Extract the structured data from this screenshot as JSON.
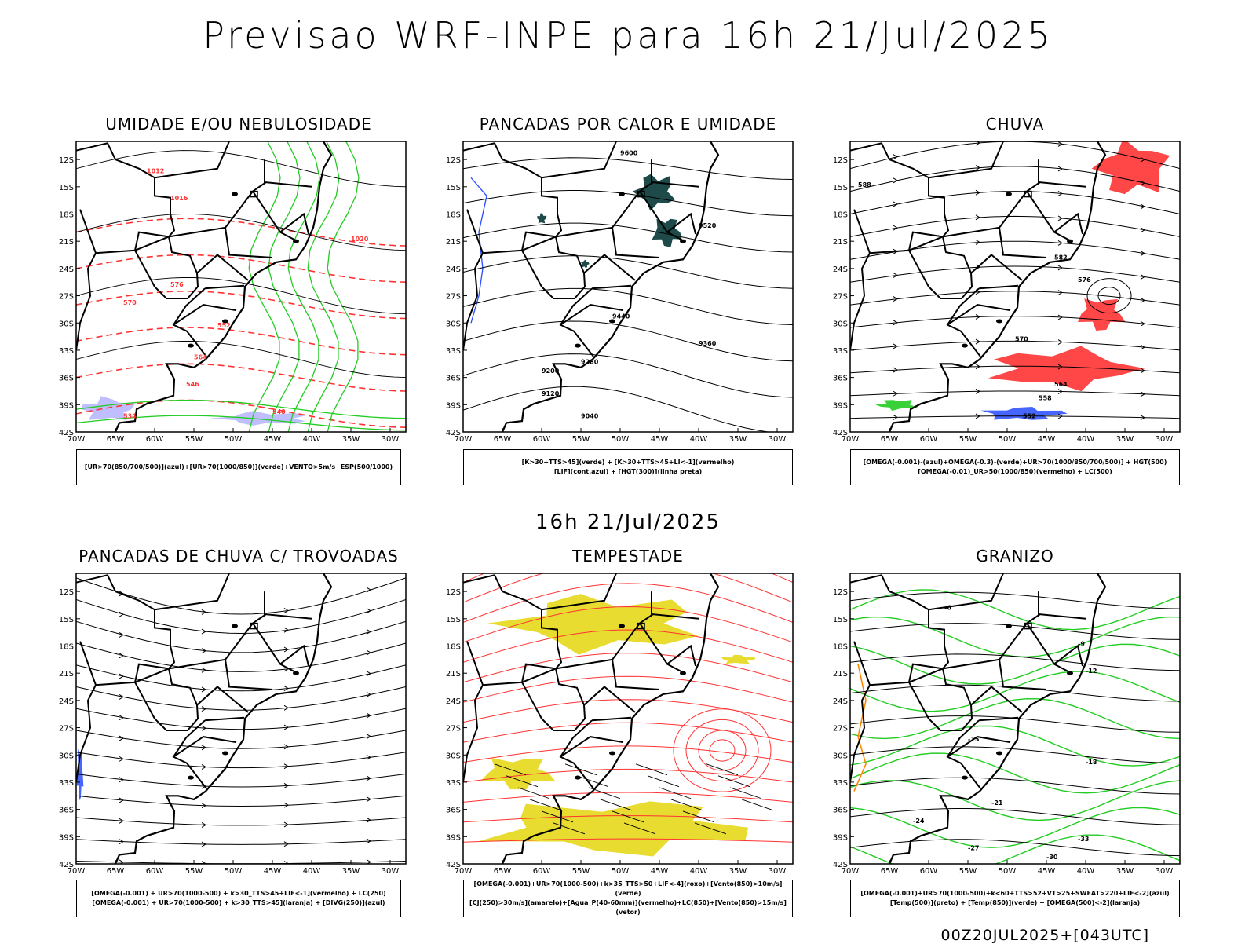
{
  "header": {
    "title": "Previsao WRF-INPE  para 16h 21/Jul/2025",
    "subtitle": "16h 21/Jul/2025",
    "footer": "00Z20JUL2025+[043UTC]"
  },
  "axes": {
    "lon_labels": [
      "70W",
      "65W",
      "60W",
      "55W",
      "50W",
      "45W",
      "40W",
      "35W",
      "30W"
    ],
    "lat_labels": [
      "12S",
      "15S",
      "18S",
      "21S",
      "24S",
      "27S",
      "30S",
      "33S",
      "36S",
      "39S",
      "42S"
    ]
  },
  "colors": {
    "frame": "#000000",
    "red": "#ff3333",
    "green": "#22cc22",
    "blue": "#3355ff",
    "lavender": "#b8b8ff",
    "dark_teal": "#1e4a4a",
    "yellow": "#e8dc30",
    "orange": "#ff8800"
  },
  "panels": [
    {
      "id": "umidade",
      "title": "UMIDADE E/OU NEBULOSIDADE",
      "legend": [
        "[UR>70(850/700/500)](azul)+[UR>70(1000/850)](verde)+VENTO>5m/s+ESP(500/1000)"
      ],
      "contour_labels": [
        "1012",
        "1016",
        "1020",
        "552",
        "564",
        "570",
        "576",
        "546",
        "540",
        "534"
      ]
    },
    {
      "id": "pancadas-calor",
      "title": "PANCADAS POR CALOR E UMIDADE",
      "legend": [
        "[K>30+TTS>45](verde) + [K>30+TTS>45+LI<-1](vermelho)",
        "[LIF](cont.azul) + [HGT(300)](linha preta)"
      ],
      "contour_labels": [
        "9600",
        "9520",
        "9440",
        "9360",
        "9280",
        "9200",
        "9120",
        "9040"
      ]
    },
    {
      "id": "chuva",
      "title": "CHUVA",
      "legend": [
        "[OMEGA(-0.001)-(azul)+OMEGA(-0.3)-(verde)+UR>70(1000/850/700/500)] + HGT(500)",
        "[OMEGA(-0.01)_UR>50(1000/850)(vermelho) + LC(500)"
      ],
      "contour_labels": [
        "588",
        "582",
        "576",
        "570",
        "564",
        "558",
        "552"
      ]
    },
    {
      "id": "pancadas-trovoadas",
      "title": "PANCADAS DE CHUVA C/ TROVOADAS",
      "legend": [
        "[OMEGA(-0.001) + UR>70(1000-500) + k>30_TTS>45+LIF<-1](vermelho) + LC(250)",
        "[OMEGA(-0.001) + UR>70(1000-500) + k>30_TTS>45](laranja) + [DIVG(250)](azul)"
      ],
      "contour_labels": []
    },
    {
      "id": "tempestade",
      "title": "TEMPESTADE",
      "legend": [
        "[OMEGA(-0.001)+UR>70(1000-500)+k>35_TTS>50+LIF<-4](roxo)+[Vento(850)>10m/s](verde)",
        "[CJ(250)>30m/s](amarelo)+[Agua_P(40-60mm)](vermelho)+LC(850)+[Vento(850)>15m/s](vetor)"
      ],
      "contour_labels": []
    },
    {
      "id": "granizo",
      "title": "GRANIZO",
      "legend": [
        "[OMEGA(-0.001)+UR>70(1000-500)+k<60+TTS>52+VT>25+SWEAT>220+LIF<-2](azul)",
        "[Temp(500)](preto) + [Temp(850)](verde) + [OMEGA(500)<-2](laranja)"
      ],
      "contour_labels": [
        "-6",
        "-9",
        "-12",
        "-15",
        "-18",
        "-21",
        "-24",
        "-27",
        "-30",
        "-33"
      ]
    }
  ]
}
